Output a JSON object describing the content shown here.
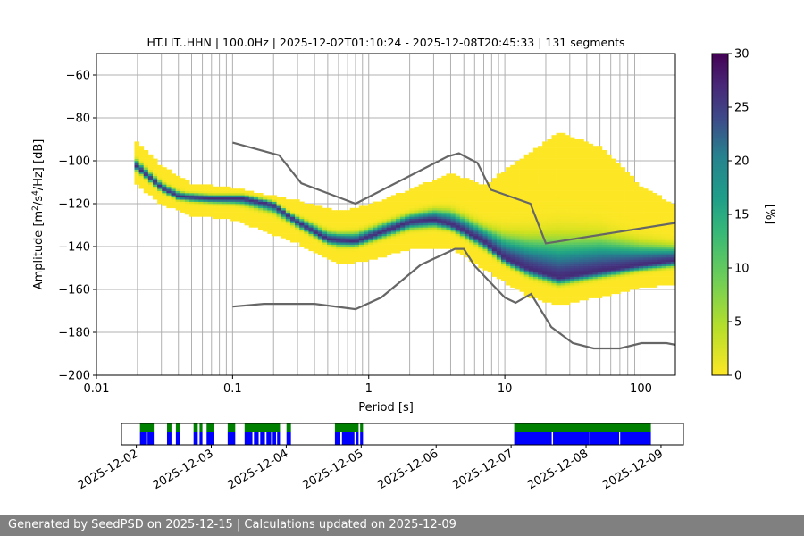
{
  "chart_data": {
    "type": "heatmap",
    "title": "HT.LIT..HHN | 100.0Hz | 2025-12-02T01:10:24 - 2025-12-08T20:45:33 | 131 segments",
    "xlabel": "Period [s]",
    "ylabel": "Amplitude [m²/s⁴/Hz] [dB]",
    "x_scale": "log",
    "xlim": [
      0.01,
      179
    ],
    "ylim": [
      -200,
      -50
    ],
    "x_ticks": [
      {
        "value": 0.01,
        "label": "0.01"
      },
      {
        "value": 0.1,
        "label": "0.1"
      },
      {
        "value": 1,
        "label": "1"
      },
      {
        "value": 10,
        "label": "10"
      },
      {
        "value": 100,
        "label": "100"
      }
    ],
    "y_ticks": [
      {
        "value": -60,
        "label": "−60"
      },
      {
        "value": -80,
        "label": "−80"
      },
      {
        "value": -100,
        "label": "−100"
      },
      {
        "value": -120,
        "label": "−120"
      },
      {
        "value": -140,
        "label": "−140"
      },
      {
        "value": -160,
        "label": "−160"
      },
      {
        "value": -180,
        "label": "−180"
      },
      {
        "value": -200,
        "label": "−200"
      }
    ],
    "grid": true,
    "colorbar": {
      "label": "[%]",
      "range": [
        0,
        30
      ],
      "ticks": [
        {
          "value": 0,
          "label": "0"
        },
        {
          "value": 5,
          "label": "5"
        },
        {
          "value": 10,
          "label": "10"
        },
        {
          "value": 15,
          "label": "15"
        },
        {
          "value": 20,
          "label": "20"
        },
        {
          "value": 25,
          "label": "25"
        },
        {
          "value": 30,
          "label": "30"
        }
      ],
      "colormap": "viridis_r"
    },
    "noise_models": [
      {
        "name": "NHNM",
        "color": "#666666",
        "points": [
          [
            0.1,
            -91.5
          ],
          [
            0.22,
            -97.4
          ],
          [
            0.32,
            -110.5
          ],
          [
            0.8,
            -120
          ],
          [
            3.8,
            -98
          ],
          [
            4.6,
            -96.5
          ],
          [
            6.3,
            -101
          ],
          [
            7.9,
            -113.5
          ],
          [
            15.4,
            -120
          ],
          [
            20,
            -138.5
          ],
          [
            354,
            -126
          ]
        ]
      },
      {
        "name": "NLNM",
        "color": "#666666",
        "points": [
          [
            0.1,
            -168
          ],
          [
            0.17,
            -166.7
          ],
          [
            0.4,
            -166.7
          ],
          [
            0.8,
            -169.2
          ],
          [
            1.24,
            -163.7
          ],
          [
            2.4,
            -148.6
          ],
          [
            4.3,
            -141.1
          ],
          [
            5.0,
            -141.1
          ],
          [
            6.0,
            -149
          ],
          [
            10,
            -163.8
          ],
          [
            12,
            -166.2
          ],
          [
            15.6,
            -162.1
          ],
          [
            21.9,
            -177.5
          ],
          [
            31.6,
            -185
          ],
          [
            45,
            -187.5
          ],
          [
            70,
            -187.5
          ],
          [
            101,
            -185
          ],
          [
            154,
            -185
          ],
          [
            179,
            -185.8
          ]
        ]
      }
    ],
    "density": {
      "mode_curve": [
        [
          0.019,
          -102
        ],
        [
          0.03,
          -113
        ],
        [
          0.04,
          -117
        ],
        [
          0.07,
          -118
        ],
        [
          0.12,
          -118
        ],
        [
          0.2,
          -121
        ],
        [
          0.3,
          -129
        ],
        [
          0.5,
          -137
        ],
        [
          0.8,
          -138
        ],
        [
          1.2,
          -134
        ],
        [
          2,
          -129
        ],
        [
          3,
          -128
        ],
        [
          4,
          -130
        ],
        [
          5,
          -133
        ],
        [
          7,
          -138
        ],
        [
          10,
          -146
        ],
        [
          15,
          -151
        ],
        [
          25,
          -155
        ],
        [
          50,
          -152
        ],
        [
          100,
          -149
        ],
        [
          179,
          -147
        ]
      ],
      "upper_curve": [
        [
          0.019,
          -91
        ],
        [
          0.03,
          -104
        ],
        [
          0.05,
          -112
        ],
        [
          0.1,
          -114
        ],
        [
          0.3,
          -120
        ],
        [
          0.6,
          -125
        ],
        [
          1,
          -122
        ],
        [
          2,
          -115
        ],
        [
          4,
          -107
        ],
        [
          7,
          -113
        ],
        [
          15,
          -98
        ],
        [
          25,
          -88
        ],
        [
          50,
          -95
        ],
        [
          100,
          -113
        ],
        [
          179,
          -122
        ]
      ],
      "lower_curve": [
        [
          0.019,
          -110
        ],
        [
          0.03,
          -120
        ],
        [
          0.05,
          -125
        ],
        [
          0.1,
          -127
        ],
        [
          0.3,
          -138
        ],
        [
          0.6,
          -148
        ],
        [
          1,
          -146
        ],
        [
          2,
          -141
        ],
        [
          4,
          -140
        ],
        [
          7,
          -150
        ],
        [
          15,
          -163
        ],
        [
          25,
          -167
        ],
        [
          50,
          -163
        ],
        [
          100,
          -159
        ],
        [
          179,
          -157
        ]
      ]
    },
    "timeline": {
      "date_ticks": [
        "2025-12-02",
        "2025-12-03",
        "2025-12-04",
        "2025-12-05",
        "2025-12-06",
        "2025-12-07",
        "2025-12-08",
        "2025-12-09"
      ],
      "start": "2025-12-01T19:15",
      "end": "2025-12-09T07:10",
      "colors": {
        "data": "#008000",
        "segment": "#0000ff"
      },
      "data_blocks": [
        [
          "2025-12-02T01:10",
          "2025-12-02T05:35"
        ],
        [
          "2025-12-02T09:50",
          "2025-12-02T11:15"
        ],
        [
          "2025-12-02T12:40",
          "2025-12-02T14:05"
        ],
        [
          "2025-12-02T18:20",
          "2025-12-02T19:40"
        ],
        [
          "2025-12-02T20:15",
          "2025-12-02T21:10"
        ],
        [
          "2025-12-02T22:30",
          "2025-12-03T00:50"
        ],
        [
          "2025-12-03T05:15",
          "2025-12-03T07:40"
        ],
        [
          "2025-12-03T10:40",
          "2025-12-03T22:00"
        ],
        [
          "2025-12-04T00:05",
          "2025-12-04T01:30"
        ],
        [
          "2025-12-04T15:35",
          "2025-12-04T23:10"
        ],
        [
          "2025-12-04T23:40",
          "2025-12-05T00:35"
        ],
        [
          "2025-12-07T01:00",
          "2025-12-08T20:45"
        ]
      ],
      "segment_blocks": [
        [
          "2025-12-02T01:10",
          "2025-12-02T03:10"
        ],
        [
          "2025-12-02T03:35",
          "2025-12-02T05:35"
        ],
        [
          "2025-12-02T09:50",
          "2025-12-02T11:15"
        ],
        [
          "2025-12-02T12:40",
          "2025-12-02T14:05"
        ],
        [
          "2025-12-02T18:20",
          "2025-12-02T19:40"
        ],
        [
          "2025-12-02T20:15",
          "2025-12-02T21:10"
        ],
        [
          "2025-12-02T22:30",
          "2025-12-03T00:50"
        ],
        [
          "2025-12-03T05:15",
          "2025-12-03T07:40"
        ],
        [
          "2025-12-03T10:40",
          "2025-12-03T13:10"
        ],
        [
          "2025-12-03T13:40",
          "2025-12-03T15:10"
        ],
        [
          "2025-12-03T15:40",
          "2025-12-03T17:10"
        ],
        [
          "2025-12-03T17:40",
          "2025-12-03T19:10"
        ],
        [
          "2025-12-03T19:40",
          "2025-12-03T20:45"
        ],
        [
          "2025-12-03T21:05",
          "2025-12-03T22:00"
        ],
        [
          "2025-12-04T00:05",
          "2025-12-04T01:30"
        ],
        [
          "2025-12-04T15:35",
          "2025-12-04T17:20"
        ],
        [
          "2025-12-04T17:50",
          "2025-12-04T21:50"
        ],
        [
          "2025-12-04T22:15",
          "2025-12-04T23:10"
        ],
        [
          "2025-12-04T23:40",
          "2025-12-05T00:35"
        ],
        [
          "2025-12-07T01:00",
          "2025-12-07T13:00"
        ],
        [
          "2025-12-07T13:25",
          "2025-12-08T01:05"
        ],
        [
          "2025-12-08T01:25",
          "2025-12-08T10:35"
        ],
        [
          "2025-12-08T10:55",
          "2025-12-08T20:45"
        ]
      ]
    }
  },
  "footer": {
    "text": "Generated by SeedPSD on 2025-12-15 | Calculations updated on 2025-12-09"
  }
}
